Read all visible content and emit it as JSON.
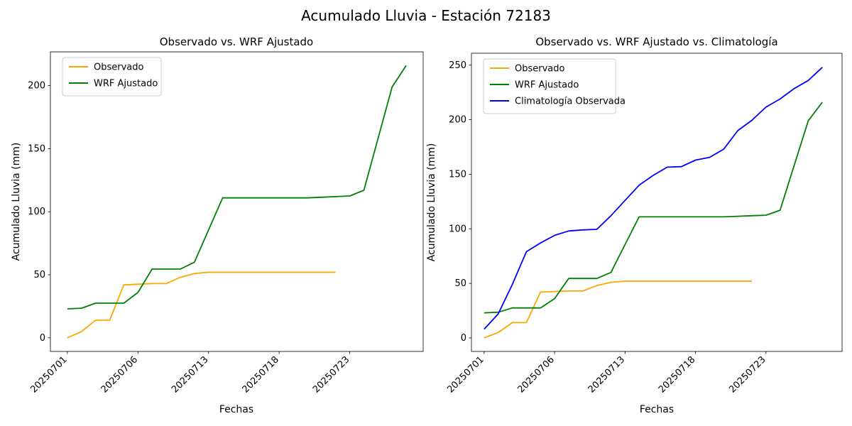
{
  "figure": {
    "title": "Acumulado Lluvia - Estación 72183",
    "background": "#ffffff"
  },
  "chart_data": [
    {
      "id": "left",
      "type": "line",
      "title": "Observado vs. WRF Ajustado",
      "xlabel": "Fechas",
      "ylabel": "Acumulado Lluvia (mm)",
      "legend_position": "upper left",
      "grid": false,
      "x_tick_positions": [
        0,
        5,
        10,
        15,
        20
      ],
      "x_tick_labels": [
        "20250701",
        "20250706",
        "20250713",
        "20250718",
        "20250723"
      ],
      "x_tick_rotation": 45,
      "y_ticks": [
        0,
        50,
        100,
        150,
        200
      ],
      "xlim": [
        -1.2,
        25.2
      ],
      "ylim": [
        -10.8,
        226.8
      ],
      "series": [
        {
          "name": "Observado",
          "color": "#FFA500",
          "values": [
            0,
            5,
            14,
            14,
            42,
            42.5,
            43,
            43,
            48,
            51,
            52,
            52,
            52,
            52,
            52,
            52,
            52,
            52,
            52,
            52
          ]
        },
        {
          "name": "WRF Ajustado",
          "color": "#008000",
          "values": [
            23,
            23.5,
            27.5,
            27.5,
            27.5,
            36,
            54.5,
            54.5,
            54.5,
            60,
            85.5,
            111,
            111,
            111,
            111,
            111,
            111,
            111,
            111.5,
            112,
            112.5,
            117,
            158,
            199,
            216
          ]
        }
      ]
    },
    {
      "id": "right",
      "type": "line",
      "title": "Observado vs. WRF Ajustado vs. Climatología",
      "xlabel": "Fechas",
      "ylabel": "Acumulado Lluvia (mm)",
      "legend_position": "upper left",
      "grid": false,
      "x_tick_positions": [
        0,
        5,
        10,
        15,
        20
      ],
      "x_tick_labels": [
        "20250701",
        "20250706",
        "20250713",
        "20250718",
        "20250723"
      ],
      "x_tick_rotation": 45,
      "y_ticks": [
        0,
        50,
        100,
        150,
        200,
        250
      ],
      "xlim": [
        -0.9,
        25.4
      ],
      "ylim": [
        -12.4,
        260.9
      ],
      "series": [
        {
          "name": "Observado",
          "color": "#FFA500",
          "values": [
            0,
            5,
            14,
            14,
            42,
            42.5,
            43,
            43,
            48,
            51,
            52,
            52,
            52,
            52,
            52,
            52,
            52,
            52,
            52,
            52
          ]
        },
        {
          "name": "WRF Ajustado",
          "color": "#008000",
          "values": [
            23,
            23.5,
            27.5,
            27.5,
            27.5,
            36,
            54.5,
            54.5,
            54.5,
            60,
            85.5,
            111,
            111,
            111,
            111,
            111,
            111,
            111,
            111.5,
            112,
            112.5,
            117,
            158,
            199,
            216
          ]
        },
        {
          "name": "Climatología Observada",
          "color": "#0000FF",
          "values": [
            8,
            22,
            49,
            79,
            87,
            94,
            98,
            99,
            99.5,
            112,
            126,
            140,
            149,
            156.5,
            157,
            163,
            165.5,
            173,
            190,
            199.5,
            211.5,
            219,
            228.5,
            236,
            248
          ]
        }
      ]
    }
  ]
}
